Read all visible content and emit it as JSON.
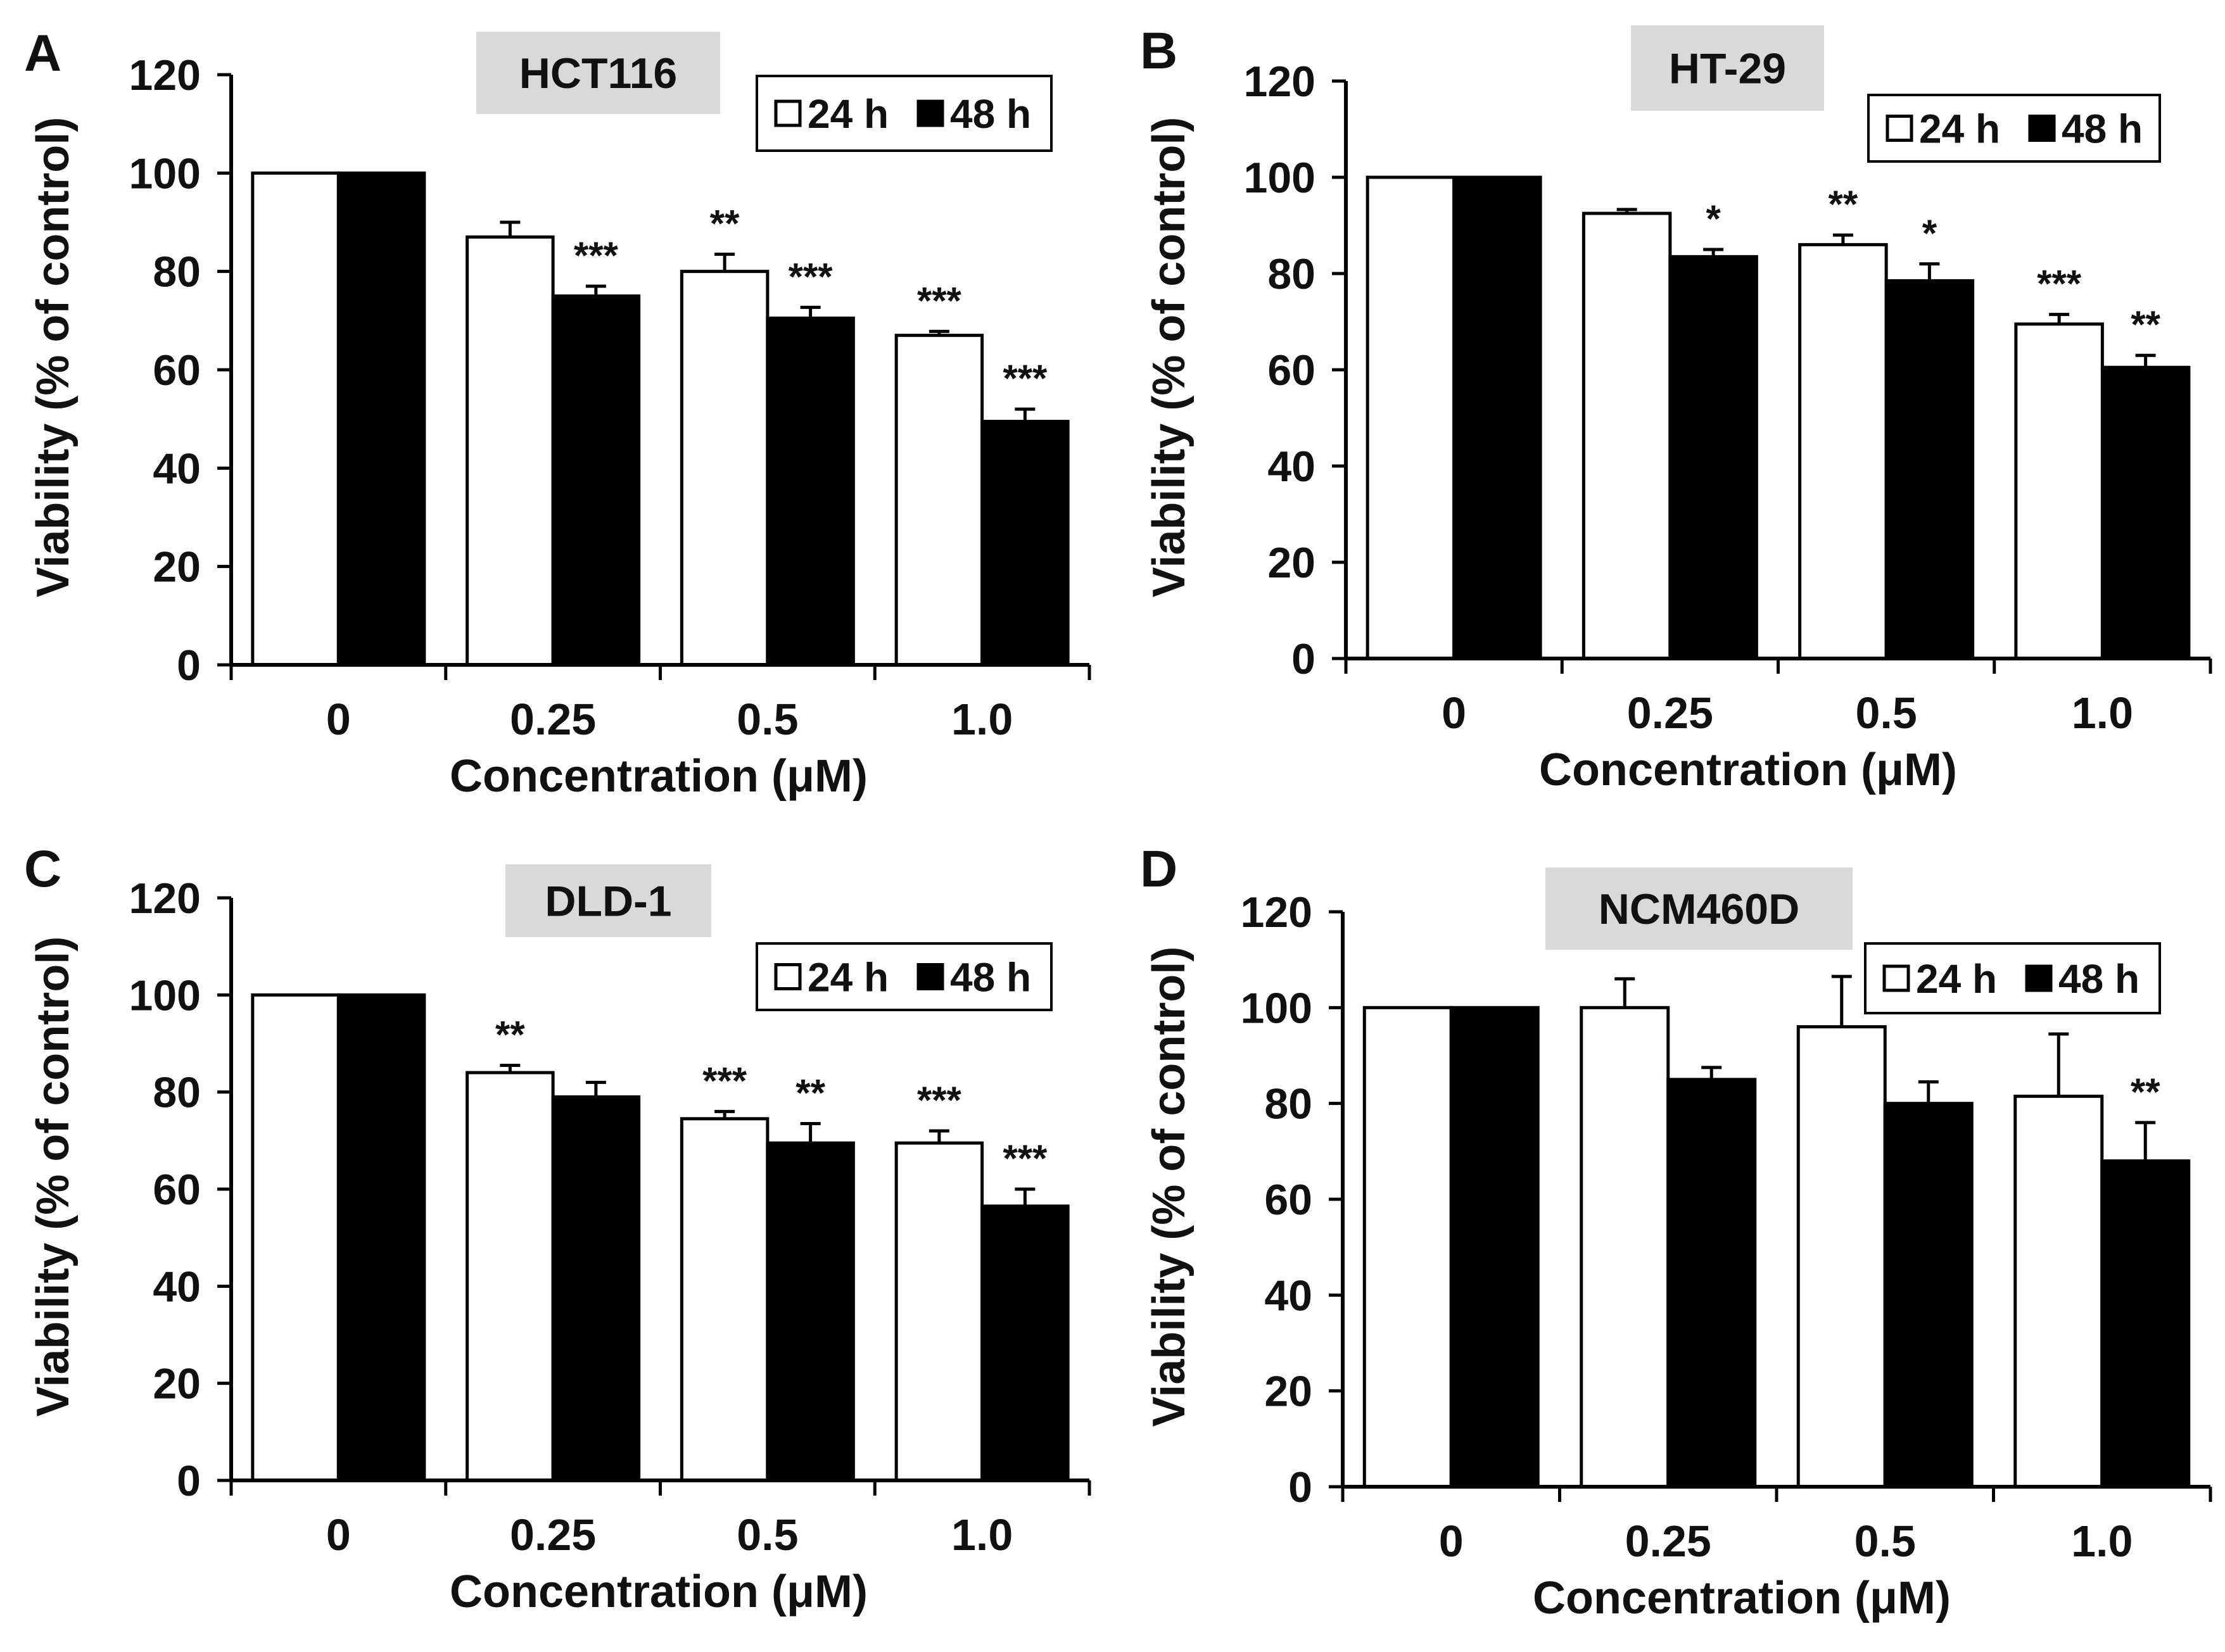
{
  "figure": {
    "description_free": true
  },
  "chart_data": [
    {
      "panel_label": "A",
      "title": "HCT116",
      "type": "bar",
      "xlabel": "Concentration (μM)",
      "ylabel": "Viability (% of control)",
      "categories": [
        "0",
        "0.25",
        "0.5",
        "1.0"
      ],
      "ylim": [
        0,
        120
      ],
      "yticks": [
        "0",
        "20",
        "40",
        "60",
        "80",
        "100",
        "120"
      ],
      "legend": {
        "placement": "top-right",
        "entries": [
          "24 h",
          "48 h"
        ]
      },
      "series": [
        {
          "name": "24 h",
          "color": "#ffffff",
          "values": [
            100,
            87,
            80,
            67
          ],
          "errors": [
            0,
            3,
            3.5,
            0.8
          ],
          "significance": [
            "",
            "",
            "**",
            "***"
          ]
        },
        {
          "name": "48 h",
          "color": "#000000",
          "values": [
            100,
            75,
            70.5,
            49.5
          ],
          "errors": [
            0.4,
            2,
            2.2,
            2.5
          ],
          "significance": [
            "",
            "***",
            "***",
            "***"
          ]
        }
      ]
    },
    {
      "panel_label": "B",
      "title": "HT-29",
      "type": "bar",
      "xlabel": "Concentration (μM)",
      "ylabel": "Viability (% of control)",
      "categories": [
        "0",
        "0.25",
        "0.5",
        "1.0"
      ],
      "ylim": [
        0,
        120
      ],
      "yticks": [
        "0",
        "20",
        "40",
        "60",
        "80",
        "100",
        "120"
      ],
      "legend": {
        "placement": "top-right",
        "entries": [
          "24 h",
          "48 h"
        ]
      },
      "series": [
        {
          "name": "24 h",
          "color": "#ffffff",
          "values": [
            100,
            92.5,
            86,
            69.5
          ],
          "errors": [
            0,
            0.8,
            2,
            2
          ],
          "significance": [
            "",
            "",
            "**",
            "***"
          ]
        },
        {
          "name": "48 h",
          "color": "#000000",
          "values": [
            100,
            83.5,
            78.5,
            60.5
          ],
          "errors": [
            0.4,
            1.5,
            3.5,
            2.5
          ],
          "significance": [
            "",
            "*",
            "*",
            "**"
          ]
        }
      ]
    },
    {
      "panel_label": "C",
      "title": "DLD-1",
      "type": "bar",
      "xlabel": "Concentration (μM)",
      "ylabel": "Viability (% of control)",
      "categories": [
        "0",
        "0.25",
        "0.5",
        "1.0"
      ],
      "ylim": [
        0,
        120
      ],
      "yticks": [
        "0",
        "20",
        "40",
        "60",
        "80",
        "100",
        "120"
      ],
      "legend": {
        "placement": "top-right",
        "entries": [
          "24 h",
          "48 h"
        ]
      },
      "series": [
        {
          "name": "24 h",
          "color": "#ffffff",
          "values": [
            100,
            84,
            74.5,
            69.5
          ],
          "errors": [
            0,
            1.5,
            1.5,
            2.5
          ],
          "significance": [
            "",
            "**",
            "***",
            "***"
          ]
        },
        {
          "name": "48 h",
          "color": "#000000",
          "values": [
            100,
            79,
            69.5,
            56.5
          ],
          "errors": [
            0.4,
            3,
            4,
            3.5
          ],
          "significance": [
            "",
            "",
            "**",
            "***"
          ]
        }
      ]
    },
    {
      "panel_label": "D",
      "title": "NCM460D",
      "type": "bar",
      "xlabel": "Concentration (μM)",
      "ylabel": "Viability (% of control)",
      "categories": [
        "0",
        "0.25",
        "0.5",
        "1.0"
      ],
      "ylim": [
        0,
        120
      ],
      "yticks": [
        "0",
        "20",
        "40",
        "60",
        "80",
        "100",
        "120"
      ],
      "legend": {
        "placement": "top-right",
        "entries": [
          "24 h",
          "48 h"
        ]
      },
      "series": [
        {
          "name": "24 h",
          "color": "#ffffff",
          "values": [
            100,
            100,
            96,
            81.5
          ],
          "errors": [
            0,
            6,
            10.5,
            13
          ],
          "significance": [
            "",
            "",
            "",
            ""
          ]
        },
        {
          "name": "48 h",
          "color": "#000000",
          "values": [
            100,
            85,
            80,
            68
          ],
          "errors": [
            0.3,
            2.5,
            4.5,
            8
          ],
          "significance": [
            "",
            "",
            "",
            "**"
          ]
        }
      ]
    }
  ]
}
